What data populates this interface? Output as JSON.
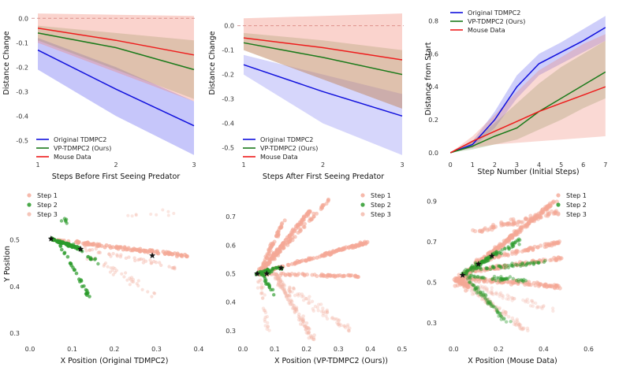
{
  "chart_data": [
    {
      "type": "line",
      "xlabel": "Steps Before First Seeing Predator",
      "ylabel": "Distance Change",
      "x": [
        1,
        2,
        3
      ],
      "xticks": [
        1,
        2,
        3
      ],
      "ylim": [
        -0.57,
        0.03
      ],
      "yticks": [
        0.0,
        -0.1,
        -0.2,
        -0.3,
        -0.4,
        -0.5
      ],
      "grid": false,
      "legend_position": "bottom-left",
      "reference_line": 0,
      "series": [
        {
          "name": "Original TDMPC2",
          "color": "#1010dd",
          "values": [
            -0.13,
            -0.29,
            -0.44
          ],
          "band_low": [
            -0.21,
            -0.4,
            -0.56
          ],
          "band_high": [
            -0.08,
            -0.2,
            -0.34
          ],
          "band_color": "#5c5cf0",
          "band_opacity": 0.35
        },
        {
          "name": "VP-TDMPC2 (Ours)",
          "color": "#1a7a1a",
          "values": [
            -0.06,
            -0.12,
            -0.21
          ],
          "band_low": [
            -0.09,
            -0.21,
            -0.33
          ],
          "band_high": [
            -0.03,
            -0.06,
            -0.09
          ],
          "band_color": "#6a9a50",
          "band_opacity": 0.28
        },
        {
          "name": "Mouse Data",
          "color": "#ee1c1c",
          "values": [
            -0.04,
            -0.09,
            -0.15
          ],
          "band_low": [
            -0.1,
            -0.22,
            -0.34
          ],
          "band_high": [
            0.02,
            0.015,
            0.01
          ],
          "band_color": "#f08070",
          "band_opacity": 0.35
        }
      ]
    },
    {
      "type": "line",
      "xlabel": "Steps After First Seeing Predator",
      "ylabel": "Distance Change",
      "x": [
        1,
        2,
        3
      ],
      "xticks": [
        1,
        2,
        3
      ],
      "ylim": [
        -0.54,
        0.06
      ],
      "yticks": [
        0.0,
        -0.1,
        -0.2,
        -0.3,
        -0.4,
        -0.5
      ],
      "grid": false,
      "legend_position": "bottom-left",
      "reference_line": 0,
      "series": [
        {
          "name": "Original TDMPC2",
          "color": "#1010dd",
          "values": [
            -0.16,
            -0.27,
            -0.37
          ],
          "band_low": [
            -0.2,
            -0.4,
            -0.53
          ],
          "band_high": [
            -0.12,
            -0.2,
            -0.28
          ],
          "band_color": "#5c5cf0",
          "band_opacity": 0.25
        },
        {
          "name": "VP-TDMPC2 (Ours)",
          "color": "#1a7a1a",
          "values": [
            -0.07,
            -0.13,
            -0.2
          ],
          "band_low": [
            -0.1,
            -0.22,
            -0.34
          ],
          "band_high": [
            -0.03,
            -0.06,
            -0.1
          ],
          "band_color": "#6a9a50",
          "band_opacity": 0.28
        },
        {
          "name": "Mouse Data",
          "color": "#ee1c1c",
          "values": [
            -0.05,
            -0.09,
            -0.14
          ],
          "band_low": [
            -0.1,
            -0.22,
            -0.34
          ],
          "band_high": [
            0.03,
            0.04,
            0.05
          ],
          "band_color": "#f08070",
          "band_opacity": 0.35
        }
      ]
    },
    {
      "type": "line",
      "xlabel": "Step Number (Initial Steps)",
      "ylabel": "Distance from Start",
      "x": [
        0,
        1,
        2,
        3,
        4,
        5,
        6,
        7
      ],
      "xticks": [
        0,
        1,
        2,
        3,
        4,
        5,
        6,
        7
      ],
      "xlim": [
        -0.15,
        7.15
      ],
      "ylim": [
        -0.01,
        0.86
      ],
      "yticks": [
        0.0,
        0.2,
        0.4,
        0.6,
        0.8
      ],
      "grid": false,
      "legend_position": "top-left",
      "series": [
        {
          "name": "Original TDMPC2",
          "color": "#1010dd",
          "values": [
            0.0,
            0.05,
            0.2,
            0.4,
            0.54,
            0.61,
            0.68,
            0.76
          ],
          "band_low": [
            0.0,
            0.03,
            0.15,
            0.33,
            0.47,
            0.54,
            0.61,
            0.68
          ],
          "band_high": [
            0.0,
            0.07,
            0.25,
            0.47,
            0.6,
            0.67,
            0.75,
            0.83
          ],
          "band_color": "#5c5cf0",
          "band_opacity": 0.3
        },
        {
          "name": "VP-TDMPC2 (Ours)",
          "color": "#1a7a1a",
          "values": [
            0.0,
            0.04,
            0.1,
            0.15,
            0.25,
            0.33,
            0.41,
            0.49
          ],
          "band_low": [
            0.0,
            0.02,
            0.05,
            0.08,
            0.14,
            0.2,
            0.27,
            0.33
          ],
          "band_high": [
            0.0,
            0.07,
            0.18,
            0.3,
            0.42,
            0.52,
            0.6,
            0.68
          ],
          "band_color": "#6a9a50",
          "band_opacity": 0.28
        },
        {
          "name": "Mouse Data",
          "color": "#ee1c1c",
          "values": [
            0.0,
            0.07,
            0.13,
            0.19,
            0.25,
            0.3,
            0.35,
            0.4
          ],
          "band_low": [
            0.0,
            0.03,
            0.05,
            0.06,
            0.07,
            0.08,
            0.09,
            0.1
          ],
          "band_high": [
            0.0,
            0.1,
            0.23,
            0.37,
            0.5,
            0.58,
            0.66,
            0.72
          ],
          "band_color": "#f08070",
          "band_opacity": 0.3
        }
      ]
    },
    {
      "type": "scatter",
      "xlabel": "X Position (Original TDMPC2)",
      "ylabel": "Y Position",
      "xlim": [
        0.0,
        0.4
      ],
      "ylim": [
        0.275,
        0.595
      ],
      "xticks": [
        0.0,
        0.1,
        0.2,
        0.3,
        0.4
      ],
      "yticks": [
        0.3,
        0.4,
        0.5
      ],
      "grid": false,
      "legend_position": "top-left",
      "series": [
        {
          "name": "Step 1",
          "color": "#f4a896"
        },
        {
          "name": "Step 2",
          "color": "#2a9a2a"
        },
        {
          "name": "Step 3",
          "color": "#f3b6a8"
        }
      ],
      "star_markers": [
        [
          0.05,
          0.502
        ],
        [
          0.12,
          0.48
        ],
        [
          0.29,
          0.466
        ]
      ]
    },
    {
      "type": "scatter",
      "xlabel": "X Position (VP-TDMPC2 (Ours))",
      "ylabel": "",
      "xlim": [
        0.0,
        0.5
      ],
      "ylim": [
        0.25,
        0.775
      ],
      "xticks": [
        0.0,
        0.1,
        0.2,
        0.3,
        0.4,
        0.5
      ],
      "yticks": [
        0.3,
        0.4,
        0.5,
        0.6,
        0.7
      ],
      "grid": false,
      "legend_position": "top-right",
      "series": [
        {
          "name": "Step 1",
          "color": "#f4a896"
        },
        {
          "name": "Step 2",
          "color": "#2a9a2a"
        },
        {
          "name": "Step 3",
          "color": "#f3b6a8"
        }
      ],
      "star_markers": [
        [
          0.045,
          0.5
        ],
        [
          0.075,
          0.5
        ],
        [
          0.12,
          0.52
        ]
      ]
    },
    {
      "type": "scatter",
      "xlabel": "X Position (Mouse Data)",
      "ylabel": "",
      "xlim": [
        -0.05,
        0.7
      ],
      "ylim": [
        0.19,
        0.93
      ],
      "xticks": [
        0.0,
        0.2,
        0.4,
        0.6
      ],
      "yticks": [
        0.3,
        0.5,
        0.7,
        0.9
      ],
      "grid": false,
      "legend_position": "top-right",
      "series": [
        {
          "name": "Step 1",
          "color": "#f4a896"
        },
        {
          "name": "Step 2",
          "color": "#2a9a2a"
        },
        {
          "name": "Step 3",
          "color": "#f3b6a8"
        }
      ],
      "star_markers": [
        [
          0.04,
          0.535
        ],
        [
          0.11,
          0.59
        ],
        [
          0.17,
          0.63
        ]
      ]
    }
  ]
}
